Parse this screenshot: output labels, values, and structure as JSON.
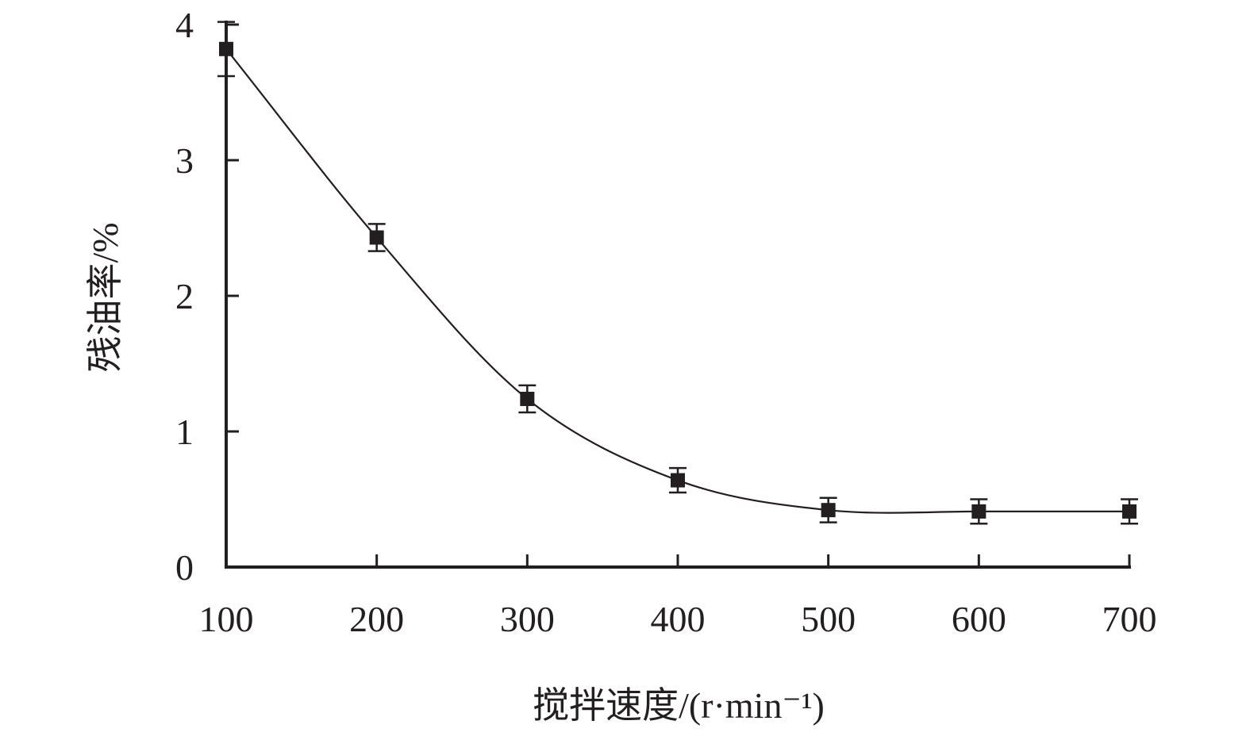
{
  "chart_data": {
    "type": "line",
    "title": "",
    "xlabel": "搅拌速度/(r·min⁻¹)",
    "ylabel": "残油率/%",
    "x_ticks": [
      "100",
      "200",
      "300",
      "400",
      "500",
      "600",
      "700"
    ],
    "y_ticks": [
      "0",
      "1",
      "2",
      "3",
      "4"
    ],
    "xlim": [
      100,
      700
    ],
    "ylim": [
      0,
      4
    ],
    "grid": false,
    "legend": "none",
    "marker": "square",
    "series": [
      {
        "x": [
          100,
          200,
          300,
          400,
          500,
          600,
          700
        ],
        "y": [
          3.82,
          2.43,
          1.24,
          0.64,
          0.42,
          0.41,
          0.41
        ],
        "error": [
          0.2,
          0.1,
          0.1,
          0.09,
          0.09,
          0.09,
          0.09
        ]
      }
    ],
    "color": "#231f20"
  }
}
